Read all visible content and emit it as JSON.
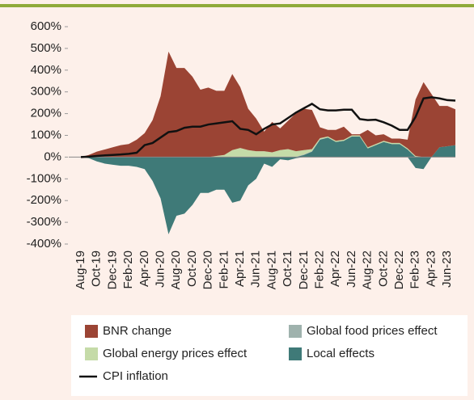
{
  "chart_data": {
    "type": "stacked_area_line",
    "categories": [
      "Aug-19",
      null,
      "Oct-19",
      null,
      "Dec-19",
      null,
      "Feb-20",
      null,
      "Apr-20",
      null,
      "Jun-20",
      null,
      "Aug-20",
      null,
      "Oct-20",
      null,
      "Dec-20",
      null,
      "Feb-21",
      null,
      "Apr-21",
      null,
      "Jun-21",
      null,
      "Aug-21",
      null,
      "Oct-21",
      null,
      "Dec-21",
      null,
      "Feb-22",
      null,
      "Apr-22",
      null,
      "Jun-22",
      null,
      "Aug-22",
      null,
      "Oct-22",
      null,
      "Dec-22",
      null,
      "Feb-23",
      null,
      "Apr-23",
      null,
      "Jun-23",
      null
    ],
    "series": [
      {
        "name": "Local effects",
        "color": "#3f7a78",
        "values": [
          0,
          -5,
          -20,
          -30,
          -35,
          -40,
          -40,
          -45,
          -55,
          -110,
          -190,
          -355,
          -270,
          -260,
          -220,
          -165,
          -165,
          -150,
          -150,
          -210,
          -200,
          -130,
          -100,
          -30,
          -45,
          -10,
          -15,
          -5,
          10,
          25,
          80,
          90,
          70,
          75,
          95,
          95,
          40,
          55,
          70,
          60,
          60,
          35,
          -50,
          -55,
          0,
          45,
          50,
          55
        ]
      },
      {
        "name": "Global food prices effect",
        "color": "#9fb2ad",
        "values": [
          0,
          0,
          0,
          0,
          0,
          0,
          0,
          0,
          0,
          0,
          0,
          0,
          0,
          0,
          0,
          0,
          0,
          0,
          0,
          2,
          2,
          2,
          2,
          2,
          2,
          2,
          2,
          2,
          2,
          2,
          2,
          0,
          0,
          0,
          0,
          0,
          0,
          0,
          0,
          0,
          0,
          0,
          0,
          0,
          0,
          0,
          0,
          0
        ]
      },
      {
        "name": "Global energy prices effect",
        "color": "#c5dba8",
        "values": [
          0,
          0,
          0,
          0,
          0,
          0,
          0,
          0,
          0,
          0,
          0,
          0,
          0,
          0,
          0,
          0,
          0,
          5,
          10,
          30,
          40,
          30,
          25,
          25,
          20,
          30,
          35,
          25,
          20,
          10,
          5,
          5,
          5,
          5,
          5,
          5,
          5,
          5,
          5,
          5,
          5,
          5,
          5,
          0,
          0,
          0,
          0,
          0
        ]
      },
      {
        "name": "BNR change",
        "color": "#9b4434",
        "values": [
          0,
          10,
          25,
          35,
          45,
          55,
          60,
          80,
          110,
          170,
          280,
          485,
          410,
          410,
          370,
          310,
          320,
          300,
          295,
          350,
          280,
          190,
          150,
          90,
          140,
          100,
          130,
          175,
          190,
          180,
          50,
          30,
          50,
          60,
          5,
          5,
          80,
          40,
          30,
          20,
          20,
          40,
          260,
          345,
          290,
          190,
          185,
          165
        ]
      }
    ],
    "line": {
      "name": "CPI inflation",
      "color": "#111111",
      "values": [
        0,
        2,
        5,
        8,
        10,
        12,
        15,
        20,
        55,
        65,
        90,
        115,
        120,
        135,
        140,
        140,
        150,
        155,
        160,
        165,
        130,
        125,
        105,
        130,
        150,
        155,
        180,
        205,
        225,
        245,
        220,
        215,
        215,
        218,
        218,
        175,
        170,
        172,
        160,
        145,
        125,
        125,
        185,
        270,
        275,
        270,
        262,
        260
      ]
    },
    "ylim": [
      -400,
      600
    ],
    "yticks": [
      {
        "value": -400,
        "label": "-400%"
      },
      {
        "value": -300,
        "label": "-300%"
      },
      {
        "value": -200,
        "label": "-200%"
      },
      {
        "value": -100,
        "label": "-100%"
      },
      {
        "value": 0,
        "label": "0%"
      },
      {
        "value": 100,
        "label": "100%"
      },
      {
        "value": 200,
        "label": "200%"
      },
      {
        "value": 300,
        "label": "300%"
      },
      {
        "value": 400,
        "label": "400%"
      },
      {
        "value": 500,
        "label": "500%"
      },
      {
        "value": 600,
        "label": "600%"
      }
    ],
    "legend_order": [
      3,
      1,
      2,
      0
    ]
  }
}
